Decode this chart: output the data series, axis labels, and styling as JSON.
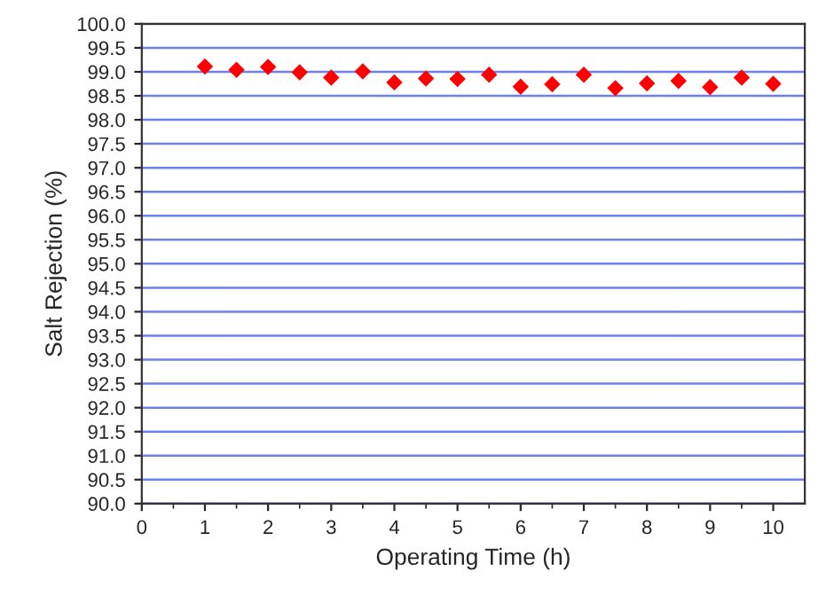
{
  "chart_data": {
    "type": "scatter",
    "xlabel": "Operating Time (h)",
    "ylabel": "Salt Rejection (%)",
    "x": [
      1,
      1.5,
      2,
      2.5,
      3,
      3.5,
      4,
      4.5,
      5,
      5.5,
      6,
      6.5,
      7,
      7.5,
      8,
      8.5,
      9,
      9.5,
      10
    ],
    "series": [
      {
        "color": "#ff0000",
        "values": [
          99.11,
          99.04,
          99.1,
          98.99,
          98.88,
          99.01,
          98.78,
          98.86,
          98.85,
          98.94,
          98.69,
          98.74,
          98.94,
          98.66,
          98.76,
          98.81,
          98.68,
          98.88,
          98.75
        ]
      }
    ],
    "marker": "diamond",
    "xlim": [
      0,
      10.5
    ],
    "xticks": [
      0,
      1,
      2,
      3,
      4,
      5,
      6,
      7,
      8,
      9,
      10
    ],
    "ylim": [
      90,
      100
    ],
    "yticks": [
      {
        "value": 90,
        "label": "90.0"
      },
      {
        "value": 90.5,
        "label": "90.5"
      },
      {
        "value": 91,
        "label": "91.0"
      },
      {
        "value": 91.5,
        "label": "91.5"
      },
      {
        "value": 92,
        "label": "92.0"
      },
      {
        "value": 92.5,
        "label": "92.5"
      },
      {
        "value": 93,
        "label": "93.0"
      },
      {
        "value": 93.5,
        "label": "93.5"
      },
      {
        "value": 94,
        "label": "94.0"
      },
      {
        "value": 94.5,
        "label": "94.5"
      },
      {
        "value": 95,
        "label": "95.0"
      },
      {
        "value": 95.5,
        "label": "95.5"
      },
      {
        "value": 96,
        "label": "96.0"
      },
      {
        "value": 96.5,
        "label": "96.5"
      },
      {
        "value": 97,
        "label": "97.0"
      },
      {
        "value": 97.5,
        "label": "97.5"
      },
      {
        "value": 98,
        "label": "98.0"
      },
      {
        "value": 98.5,
        "label": "98.5"
      },
      {
        "value": 99,
        "label": "99.0"
      },
      {
        "value": 99.5,
        "label": "99.5"
      },
      {
        "value": 100,
        "label": "100.0"
      }
    ],
    "grid": "y"
  }
}
